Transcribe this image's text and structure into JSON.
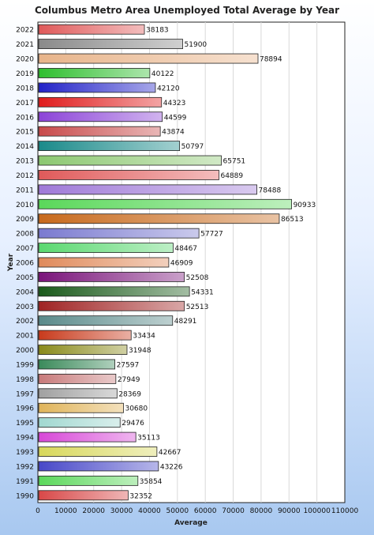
{
  "chart_data": {
    "type": "bar",
    "orientation": "horizontal",
    "title": "Columbus Metro Area Unemployed Total Average by Year",
    "xlabel": "Average",
    "ylabel": "Year",
    "xlim": [
      0,
      110000
    ],
    "xticks": [
      "0",
      "10000",
      "20000",
      "30000",
      "40000",
      "50000",
      "60000",
      "70000",
      "80000",
      "90000",
      "100000",
      "110000"
    ],
    "grid": true,
    "categories": [
      "2022",
      "2021",
      "2020",
      "2019",
      "2018",
      "2017",
      "2016",
      "2015",
      "2014",
      "2013",
      "2012",
      "2011",
      "2010",
      "2009",
      "2008",
      "2007",
      "2006",
      "2005",
      "2004",
      "2003",
      "2002",
      "2001",
      "2000",
      "1999",
      "1998",
      "1997",
      "1996",
      "1995",
      "1994",
      "1993",
      "1992",
      "1991",
      "1990"
    ],
    "values": [
      38183,
      51900,
      78894,
      40122,
      42120,
      44323,
      44599,
      43874,
      50797,
      65751,
      64889,
      78488,
      90933,
      86513,
      57727,
      48467,
      46909,
      52508,
      54331,
      52513,
      48291,
      33434,
      31948,
      27597,
      27949,
      28369,
      30680,
      29476,
      35113,
      42667,
      43226,
      35854,
      32352
    ],
    "colors": [
      "#e05a5a",
      "#8a8a8a",
      "#e8b48a",
      "#2fbf2f",
      "#2323c8",
      "#e01c1c",
      "#8c44d8",
      "#c84a4a",
      "#1a8a8a",
      "#8cc870",
      "#e05a5a",
      "#a07ad8",
      "#5ad85a",
      "#c86a1c",
      "#7a7ad0",
      "#5ad870",
      "#e08a5a",
      "#7a147a",
      "#1a5a1a",
      "#a02424",
      "#5a8a8a",
      "#c83a1c",
      "#8a8a1a",
      "#3a8a5a",
      "#c87a7a",
      "#a0a0a0",
      "#e0b45a",
      "#a0d8d0",
      "#d848d8",
      "#d8d85a",
      "#4848c8",
      "#5ad85a",
      "#d84848"
    ]
  }
}
